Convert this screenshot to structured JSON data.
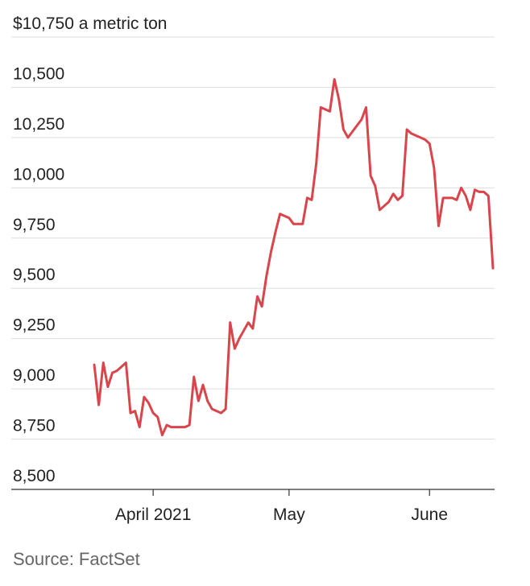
{
  "chart_data": {
    "type": "line",
    "y_unit_prefix": "$",
    "y_unit_suffix": " a metric ton",
    "ylim": [
      8500,
      10750
    ],
    "yticks": [
      8500,
      8750,
      9000,
      9250,
      9500,
      9750,
      10000,
      10250,
      10500,
      10750
    ],
    "ytick_labels": [
      "8,500",
      "8,750",
      "9,000",
      "9,250",
      "9,500",
      "9,750",
      "10,000",
      "10,250",
      "10,500",
      "10,750"
    ],
    "xlim": [
      "2021-03-19",
      "2021-06-15"
    ],
    "xticks": [
      {
        "date": "2021-04-01",
        "label": "April 2021"
      },
      {
        "date": "2021-05-01",
        "label": "May"
      },
      {
        "date": "2021-06-01",
        "label": "June"
      }
    ],
    "grid": true,
    "series": [
      {
        "color": "#d9454a",
        "x": [
          "2021-03-19",
          "2021-03-20",
          "2021-03-21",
          "2021-03-22",
          "2021-03-23",
          "2021-03-24",
          "2021-03-25",
          "2021-03-26",
          "2021-03-27",
          "2021-03-28",
          "2021-03-29",
          "2021-03-30",
          "2021-03-31",
          "2021-04-01",
          "2021-04-02",
          "2021-04-03",
          "2021-04-04",
          "2021-04-05",
          "2021-04-06",
          "2021-04-07",
          "2021-04-08",
          "2021-04-09",
          "2021-04-10",
          "2021-04-11",
          "2021-04-12",
          "2021-04-13",
          "2021-04-14",
          "2021-04-15",
          "2021-04-16",
          "2021-04-17",
          "2021-04-18",
          "2021-04-19",
          "2021-04-20",
          "2021-04-21",
          "2021-04-22",
          "2021-04-23",
          "2021-04-24",
          "2021-04-25",
          "2021-04-26",
          "2021-04-27",
          "2021-04-28",
          "2021-04-29",
          "2021-04-30",
          "2021-05-01",
          "2021-05-02",
          "2021-05-03",
          "2021-05-04",
          "2021-05-05",
          "2021-05-06",
          "2021-05-07",
          "2021-05-08",
          "2021-05-09",
          "2021-05-10",
          "2021-05-11",
          "2021-05-12",
          "2021-05-13",
          "2021-05-14",
          "2021-05-15",
          "2021-05-16",
          "2021-05-17",
          "2021-05-18",
          "2021-05-19",
          "2021-05-20",
          "2021-05-21",
          "2021-05-22",
          "2021-05-23",
          "2021-05-24",
          "2021-05-25",
          "2021-05-26",
          "2021-05-27",
          "2021-05-28",
          "2021-05-29",
          "2021-05-30",
          "2021-05-31",
          "2021-06-01",
          "2021-06-02",
          "2021-06-03",
          "2021-06-04",
          "2021-06-05",
          "2021-06-06",
          "2021-06-07",
          "2021-06-08",
          "2021-06-09",
          "2021-06-10",
          "2021-06-11",
          "2021-06-12",
          "2021-06-13",
          "2021-06-14",
          "2021-06-15"
        ],
        "y": [
          9120,
          8920,
          9130,
          9010,
          9080,
          9090,
          9110,
          9130,
          8880,
          8890,
          8810,
          8960,
          8930,
          8880,
          8860,
          8770,
          8820,
          8810,
          8810,
          8810,
          8810,
          8820,
          9060,
          8940,
          9020,
          8940,
          8900,
          8890,
          8880,
          8900,
          9330,
          9200,
          9250,
          9290,
          9330,
          9300,
          9460,
          9410,
          9560,
          9680,
          9780,
          9870,
          9860,
          9850,
          9820,
          9820,
          9820,
          9950,
          9940,
          10120,
          10400,
          10390,
          10380,
          10540,
          10440,
          10290,
          10250,
          10280,
          10310,
          10340,
          10400,
          10060,
          10010,
          9890,
          9910,
          9930,
          9970,
          9940,
          9960,
          10290,
          10270,
          10260,
          10250,
          10240,
          10220,
          10100,
          9810,
          9950,
          9950,
          9950,
          9940,
          10000,
          9960,
          9890,
          9990,
          9980,
          9980,
          9960,
          9600
        ]
      }
    ],
    "source": "Source: FactSet"
  }
}
